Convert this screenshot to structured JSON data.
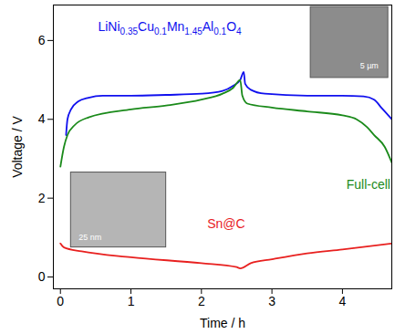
{
  "chart_data": {
    "type": "line",
    "x_label": "Time / h",
    "y_label": "Voltage / V",
    "xlim": [
      -0.1,
      4.7
    ],
    "xticks": [
      0,
      1,
      2,
      3,
      4
    ],
    "ylim": [
      -0.3,
      6.9
    ],
    "yticks": [
      0,
      2,
      4,
      6
    ],
    "grid": false,
    "series": [
      {
        "name": "LiNi0.35Cu0.1Mn1.45Al0.1O4",
        "color": "#1010ee",
        "x": [
          0.08,
          0.1,
          0.15,
          0.25,
          0.4,
          0.6,
          1.0,
          1.5,
          2.0,
          2.3,
          2.45,
          2.55,
          2.6,
          2.62,
          2.7,
          2.9,
          3.5,
          4.0,
          4.3,
          4.45,
          4.55,
          4.7
        ],
        "values": [
          3.6,
          4.0,
          4.25,
          4.45,
          4.55,
          4.6,
          4.6,
          4.62,
          4.65,
          4.72,
          4.85,
          5.0,
          5.2,
          4.9,
          4.75,
          4.65,
          4.6,
          4.6,
          4.58,
          4.5,
          4.3,
          4.0
        ]
      },
      {
        "name": "Full-cell",
        "color": "#1a8a1a",
        "x": [
          0.0,
          0.05,
          0.1,
          0.2,
          0.4,
          1.0,
          1.5,
          2.0,
          2.3,
          2.45,
          2.55,
          2.58,
          2.65,
          3.0,
          3.5,
          4.0,
          4.2,
          4.35,
          4.45,
          4.6,
          4.7
        ],
        "values": [
          2.8,
          3.3,
          3.6,
          3.85,
          4.05,
          4.25,
          4.35,
          4.5,
          4.65,
          4.8,
          5.0,
          4.6,
          4.4,
          4.3,
          4.2,
          4.1,
          4.0,
          3.8,
          3.6,
          3.3,
          2.9
        ]
      },
      {
        "name": "Sn@C",
        "color": "#e8201f",
        "x": [
          0.0,
          0.05,
          0.3,
          1.0,
          2.0,
          2.5,
          2.55,
          2.7,
          3.0,
          3.5,
          4.0,
          4.7
        ],
        "values": [
          0.85,
          0.75,
          0.65,
          0.5,
          0.35,
          0.25,
          0.22,
          0.35,
          0.45,
          0.6,
          0.7,
          0.85
        ]
      }
    ],
    "annotations": [
      "5 µm",
      "25 nm"
    ]
  }
}
